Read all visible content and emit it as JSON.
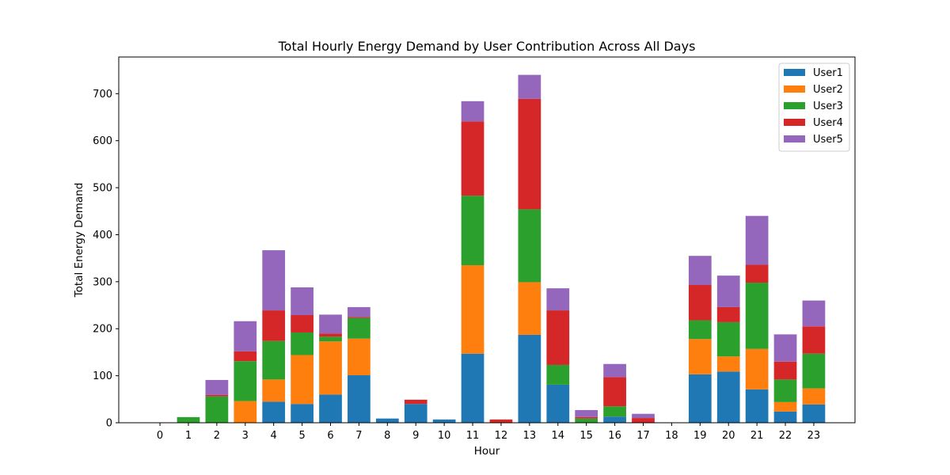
{
  "chart_data": {
    "type": "bar",
    "stacked": true,
    "title": "Total Hourly Energy Demand by User Contribution Across All Days",
    "xlabel": "Hour",
    "ylabel": "Total Energy Demand",
    "ylim": [
      0,
      778
    ],
    "yticks": [
      0,
      100,
      200,
      300,
      400,
      500,
      600,
      700
    ],
    "grid": false,
    "legend_position": "top-right",
    "categories": [
      "0",
      "1",
      "2",
      "3",
      "4",
      "5",
      "6",
      "7",
      "8",
      "9",
      "10",
      "11",
      "12",
      "13",
      "14",
      "15",
      "16",
      "17",
      "18",
      "19",
      "20",
      "21",
      "22",
      "23"
    ],
    "series": [
      {
        "name": "User1",
        "color": "#1f77b4",
        "values": [
          0,
          0,
          0,
          0,
          45,
          40,
          60,
          101,
          9,
          40,
          7,
          147,
          0,
          187,
          81,
          0,
          13,
          0,
          0,
          103,
          109,
          71,
          24,
          39
        ]
      },
      {
        "name": "User2",
        "color": "#ff7f0e",
        "values": [
          0,
          0,
          0,
          46,
          47,
          104,
          113,
          78,
          0,
          0,
          0,
          188,
          0,
          112,
          0,
          0,
          0,
          0,
          0,
          75,
          32,
          86,
          20,
          34
        ]
      },
      {
        "name": "User3",
        "color": "#2ca02c",
        "values": [
          0,
          12,
          56,
          85,
          82,
          48,
          10,
          44,
          0,
          0,
          0,
          148,
          0,
          155,
          42,
          9,
          22,
          0,
          0,
          40,
          73,
          141,
          48,
          74
        ]
      },
      {
        "name": "User4",
        "color": "#d62728",
        "values": [
          0,
          0,
          3,
          21,
          65,
          37,
          7,
          2,
          0,
          9,
          0,
          158,
          7,
          235,
          116,
          3,
          62,
          10,
          0,
          75,
          32,
          38,
          38,
          58
        ]
      },
      {
        "name": "User5",
        "color": "#9467bd",
        "values": [
          0,
          0,
          32,
          64,
          128,
          59,
          40,
          21,
          0,
          0,
          0,
          43,
          0,
          51,
          47,
          15,
          28,
          9,
          0,
          62,
          67,
          104,
          58,
          55
        ]
      }
    ]
  }
}
